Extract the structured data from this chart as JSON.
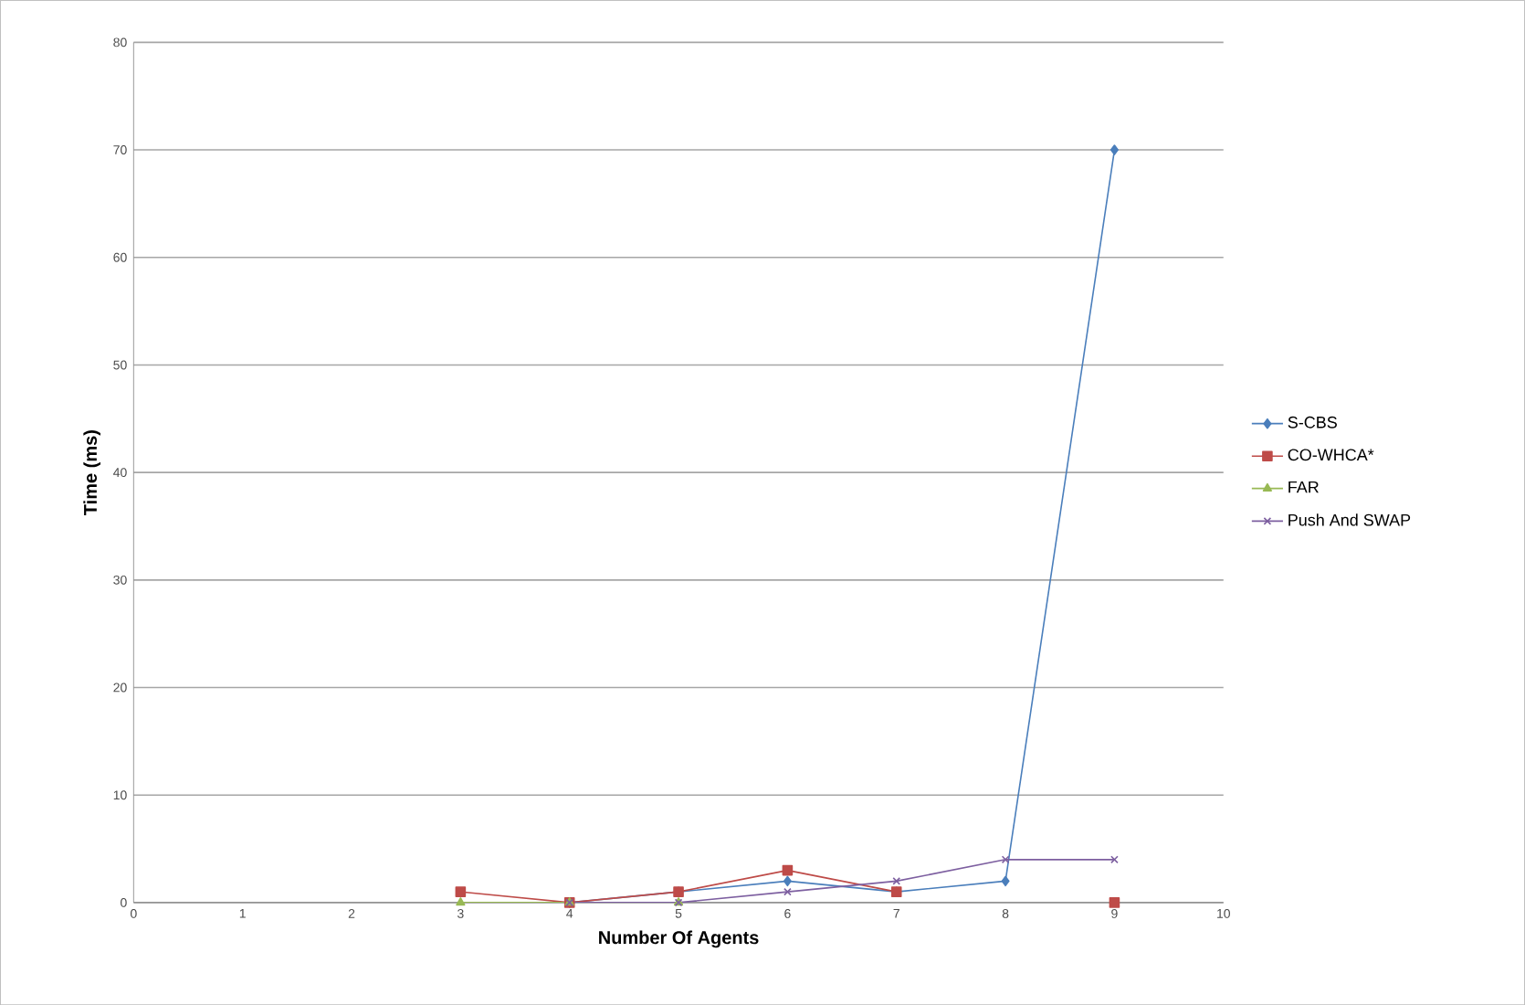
{
  "chart_data": {
    "type": "line",
    "xlabel": "Number Of Agents",
    "ylabel": "Time (ms)",
    "x": [
      3,
      4,
      5,
      6,
      7,
      8,
      9
    ],
    "xlim": [
      0,
      10
    ],
    "xticks": [
      0,
      1,
      2,
      3,
      4,
      5,
      6,
      7,
      8,
      9,
      10
    ],
    "ylim": [
      0,
      80
    ],
    "yticks": [
      0,
      10,
      20,
      30,
      40,
      50,
      60,
      70,
      80
    ],
    "grid": "y",
    "legend": "right",
    "series": [
      {
        "name": "S-CBS",
        "color": "#4a7ebb",
        "marker": "diamond",
        "values": [
          null,
          0,
          1,
          2,
          1,
          2,
          70
        ]
      },
      {
        "name": "CO-WHCA*",
        "color": "#be4b48",
        "marker": "square",
        "values": [
          1,
          0,
          1,
          3,
          1,
          null,
          0
        ]
      },
      {
        "name": "FAR",
        "color": "#98b954",
        "marker": "triangle",
        "values": [
          0,
          0,
          0,
          null,
          null,
          null,
          null
        ]
      },
      {
        "name": "Push And SWAP",
        "color": "#7d5fa0",
        "marker": "cross",
        "values": [
          null,
          0,
          0,
          1,
          2,
          4,
          4
        ]
      }
    ]
  }
}
